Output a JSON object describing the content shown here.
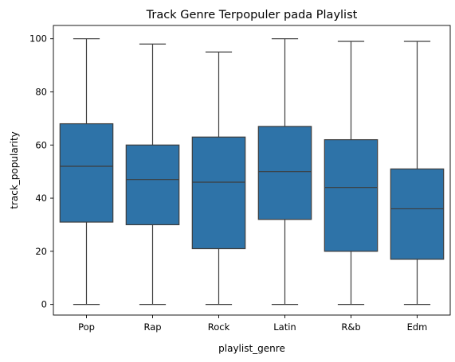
{
  "chart_data": {
    "type": "boxplot",
    "title": "Track Genre Terpopuler pada Playlist",
    "xlabel": "playlist_genre",
    "ylabel": "track_popularity",
    "ylim": [
      -4,
      105
    ],
    "yticks": [
      0,
      20,
      40,
      60,
      80,
      100
    ],
    "grid": false,
    "color": "#2e73a8",
    "line_color": "#3d3d3d",
    "categories": [
      "Pop",
      "Rap",
      "Rock",
      "Latin",
      "R&b",
      "Edm"
    ],
    "boxes": [
      {
        "category": "Pop",
        "min": 0,
        "q1": 31,
        "median": 52,
        "q3": 68,
        "max": 100
      },
      {
        "category": "Rap",
        "min": 0,
        "q1": 30,
        "median": 47,
        "q3": 60,
        "max": 98
      },
      {
        "category": "Rock",
        "min": 0,
        "q1": 21,
        "median": 46,
        "q3": 63,
        "max": 95
      },
      {
        "category": "Latin",
        "min": 0,
        "q1": 32,
        "median": 50,
        "q3": 67,
        "max": 100
      },
      {
        "category": "R&b",
        "min": 0,
        "q1": 20,
        "median": 44,
        "q3": 62,
        "max": 99
      },
      {
        "category": "Edm",
        "min": 0,
        "q1": 17,
        "median": 36,
        "q3": 51,
        "max": 99
      }
    ]
  }
}
